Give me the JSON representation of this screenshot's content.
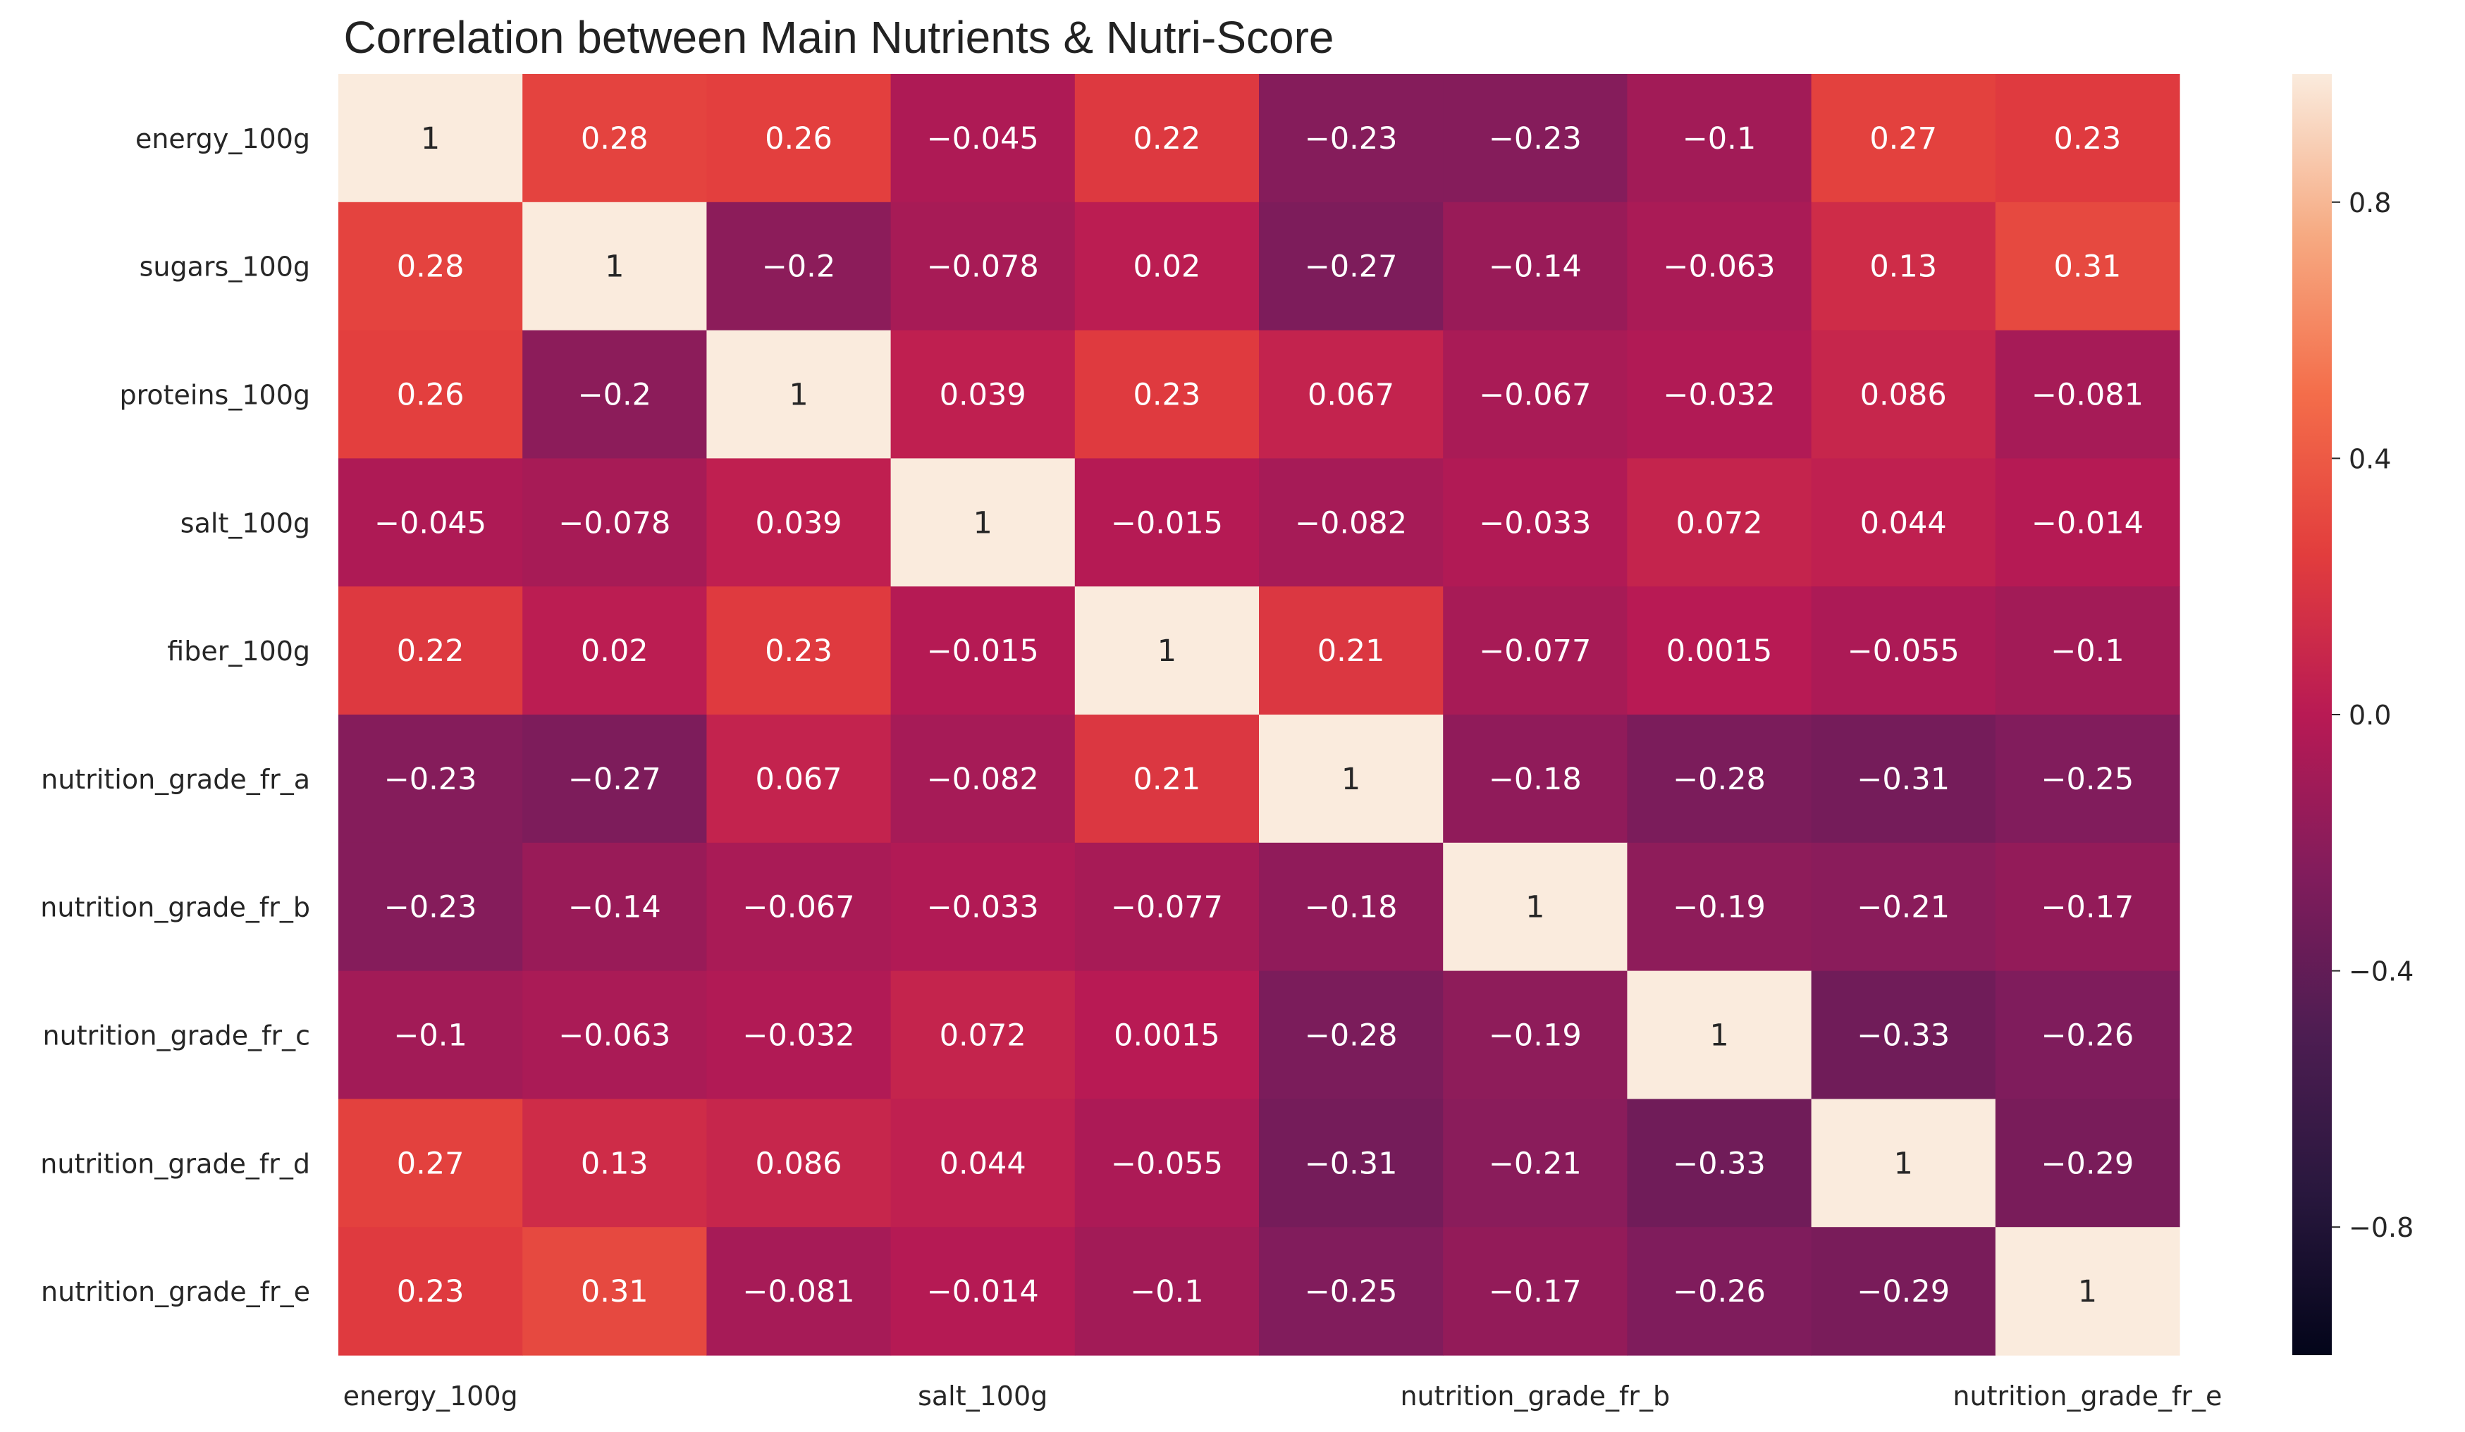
{
  "chart_data": {
    "type": "heatmap",
    "title": "Correlation between Main Nutrients & Nutri-Score",
    "row_labels": [
      "energy_100g",
      "sugars_100g",
      "proteins_100g",
      "salt_100g",
      "fiber_100g",
      "nutrition_grade_fr_a",
      "nutrition_grade_fr_b",
      "nutrition_grade_fr_c",
      "nutrition_grade_fr_d",
      "nutrition_grade_fr_e"
    ],
    "x_tick_labels": [
      "energy_100g",
      "salt_100g",
      "nutrition_grade_fr_b",
      "nutrition_grade_fr_e"
    ],
    "x_tick_indices": [
      0,
      3,
      6,
      9
    ],
    "values": [
      [
        1,
        0.28,
        0.26,
        -0.045,
        0.22,
        -0.23,
        -0.23,
        -0.1,
        0.27,
        0.23
      ],
      [
        0.28,
        1,
        -0.2,
        -0.078,
        0.02,
        -0.27,
        -0.14,
        -0.063,
        0.13,
        0.31
      ],
      [
        0.26,
        -0.2,
        1,
        0.039,
        0.23,
        0.067,
        -0.067,
        -0.032,
        0.086,
        -0.081
      ],
      [
        -0.045,
        -0.078,
        0.039,
        1,
        -0.015,
        -0.082,
        -0.033,
        0.072,
        0.044,
        -0.014
      ],
      [
        0.22,
        0.02,
        0.23,
        -0.015,
        1,
        0.21,
        -0.077,
        0.0015,
        -0.055,
        -0.1
      ],
      [
        -0.23,
        -0.27,
        0.067,
        -0.082,
        0.21,
        1,
        -0.18,
        -0.28,
        -0.31,
        -0.25
      ],
      [
        -0.23,
        -0.14,
        -0.067,
        -0.033,
        -0.077,
        -0.18,
        1,
        -0.19,
        -0.21,
        -0.17
      ],
      [
        -0.1,
        -0.063,
        -0.032,
        0.072,
        0.0015,
        -0.28,
        -0.19,
        1,
        -0.33,
        -0.26
      ],
      [
        0.27,
        0.13,
        0.086,
        0.044,
        -0.055,
        -0.31,
        -0.21,
        -0.33,
        1,
        -0.29
      ],
      [
        0.23,
        0.31,
        -0.081,
        -0.014,
        -0.1,
        -0.25,
        -0.17,
        -0.26,
        -0.29,
        1
      ]
    ],
    "colorbar": {
      "range": [
        -1,
        1
      ],
      "ticks": [
        0.8,
        0.4,
        0.0,
        -0.4,
        -0.8
      ],
      "tick_labels": [
        "0.8",
        "0.4",
        "0.0",
        "−0.4",
        "−0.8"
      ],
      "colormap": "rocket"
    }
  }
}
